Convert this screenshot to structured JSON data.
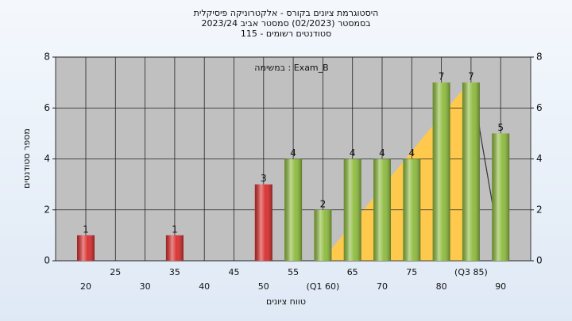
{
  "chart_data": {
    "type": "bar",
    "title": "היסטוגרמת ציונים בקורס - אלקטרוניקה פיסיקלית",
    "subtitle": "בסמסטר (02/2023) סמסטר אביב 2023/24",
    "subtitle2": "סטודנטים רשומים - 115",
    "annotation": "במשימה : Exam_B",
    "x_label": "טווח ציונים",
    "y_label": "מספר סטודנטים",
    "categories": [
      "20",
      "25",
      "30",
      "35",
      "40",
      "45",
      "50",
      "55",
      "(Q1 60)",
      "65",
      "70",
      "75",
      "80",
      "(Q3 85)",
      "90"
    ],
    "values": [
      1,
      0,
      0,
      1,
      0,
      0,
      3,
      4,
      2,
      4,
      4,
      4,
      7,
      7,
      5
    ],
    "colors": [
      "#d92b2b",
      "#d92b2b",
      "#d92b2b",
      "#d92b2b",
      "#d92b2b",
      "#d92b2b",
      "#d92b2b",
      "#8dbb3c",
      "#8dbb3c",
      "#8dbb3c",
      "#8dbb3c",
      "#8dbb3c",
      "#8dbb3c",
      "#8dbb3c",
      "#8dbb3c"
    ],
    "ylim": [
      0,
      8
    ],
    "yticks": [
      0,
      2,
      4,
      6,
      8
    ],
    "grid": true
  }
}
